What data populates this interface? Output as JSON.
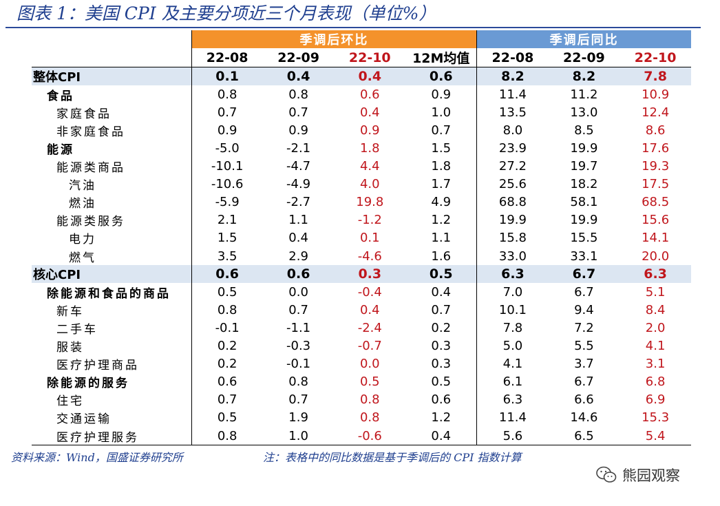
{
  "figure_title": "图表 1：美国 CPI 及主要分项近三个月表现（单位%）",
  "header": {
    "mom_group": "季调后环比",
    "yoy_group": "季调后同比",
    "columns": [
      "22-08",
      "22-09",
      "22-10",
      "12M均值",
      "22-08",
      "22-09",
      "22-10"
    ]
  },
  "rows": [
    {
      "level": 0,
      "label": "整体CPI",
      "highlight": true,
      "values": [
        "0.1",
        "0.4",
        "0.4",
        "0.6",
        "8.2",
        "8.2",
        "7.8"
      ]
    },
    {
      "level": 1,
      "label": "食品",
      "values": [
        "0.8",
        "0.8",
        "0.6",
        "0.9",
        "11.4",
        "11.2",
        "10.9"
      ]
    },
    {
      "level": 2,
      "label": "家庭食品",
      "values": [
        "0.7",
        "0.7",
        "0.4",
        "1.0",
        "13.5",
        "13.0",
        "12.4"
      ]
    },
    {
      "level": 2,
      "label": "非家庭食品",
      "values": [
        "0.9",
        "0.9",
        "0.9",
        "0.7",
        "8.0",
        "8.5",
        "8.6"
      ]
    },
    {
      "level": 1,
      "label": "能源",
      "values": [
        "-5.0",
        "-2.1",
        "1.8",
        "1.5",
        "23.9",
        "19.9",
        "17.6"
      ]
    },
    {
      "level": 2,
      "label": "能源类商品",
      "values": [
        "-10.1",
        "-4.7",
        "4.4",
        "1.8",
        "27.2",
        "19.7",
        "19.3"
      ]
    },
    {
      "level": 3,
      "label": "汽油",
      "values": [
        "-10.6",
        "-4.9",
        "4.0",
        "1.7",
        "25.6",
        "18.2",
        "17.5"
      ]
    },
    {
      "level": 3,
      "label": "燃油",
      "values": [
        "-5.9",
        "-2.7",
        "19.8",
        "4.9",
        "68.8",
        "58.1",
        "68.5"
      ]
    },
    {
      "level": 2,
      "label": "能源类服务",
      "values": [
        "2.1",
        "1.1",
        "-1.2",
        "1.2",
        "19.9",
        "19.9",
        "15.6"
      ]
    },
    {
      "level": 3,
      "label": "电力",
      "values": [
        "1.5",
        "0.4",
        "0.1",
        "1.1",
        "15.8",
        "15.5",
        "14.1"
      ]
    },
    {
      "level": 3,
      "label": "燃气",
      "values": [
        "3.5",
        "2.9",
        "-4.6",
        "1.6",
        "33.0",
        "33.1",
        "20.0"
      ]
    },
    {
      "level": 0,
      "label": "核心CPI",
      "highlight": true,
      "values": [
        "0.6",
        "0.6",
        "0.3",
        "0.5",
        "6.3",
        "6.7",
        "6.3"
      ]
    },
    {
      "level": 1,
      "label": "除能源和食品的商品",
      "values": [
        "0.5",
        "0.0",
        "-0.4",
        "0.4",
        "7.0",
        "6.7",
        "5.1"
      ]
    },
    {
      "level": 2,
      "label": "新车",
      "values": [
        "0.8",
        "0.7",
        "0.4",
        "0.7",
        "10.1",
        "9.4",
        "8.4"
      ]
    },
    {
      "level": 2,
      "label": "二手车",
      "values": [
        "-0.1",
        "-1.1",
        "-2.4",
        "0.2",
        "7.8",
        "7.2",
        "2.0"
      ]
    },
    {
      "level": 2,
      "label": "服装",
      "values": [
        "0.2",
        "-0.3",
        "-0.7",
        "0.3",
        "5.0",
        "5.5",
        "4.1"
      ]
    },
    {
      "level": 2,
      "label": "医疗护理商品",
      "values": [
        "0.2",
        "-0.1",
        "0.0",
        "0.3",
        "4.1",
        "3.7",
        "3.1"
      ]
    },
    {
      "level": 1,
      "label": "除能源的服务",
      "values": [
        "0.6",
        "0.8",
        "0.5",
        "0.5",
        "6.1",
        "6.7",
        "6.8"
      ]
    },
    {
      "level": 2,
      "label": "住宅",
      "values": [
        "0.7",
        "0.7",
        "0.8",
        "0.6",
        "6.3",
        "6.6",
        "6.9"
      ]
    },
    {
      "level": 2,
      "label": "交通运输",
      "values": [
        "0.5",
        "1.9",
        "0.8",
        "1.2",
        "11.4",
        "14.6",
        "15.3"
      ]
    },
    {
      "level": 2,
      "label": "医疗护理服务",
      "values": [
        "0.8",
        "1.0",
        "-0.6",
        "0.4",
        "5.6",
        "6.5",
        "5.4"
      ]
    }
  ],
  "footer": {
    "source": "资料来源：Wind，国盛证券研究所",
    "note": "注：表格中的同比数据是基于季调后的 CPI 指数计算"
  },
  "brand": {
    "name": "熊园观察",
    "icon": "wechat-icon"
  },
  "colors": {
    "title": "#1f3f8f",
    "mom_header": "#f4922b",
    "yoy_header": "#6a9ad4",
    "highlight_row": "#dce6f2",
    "latest_month": "#c0161c"
  }
}
